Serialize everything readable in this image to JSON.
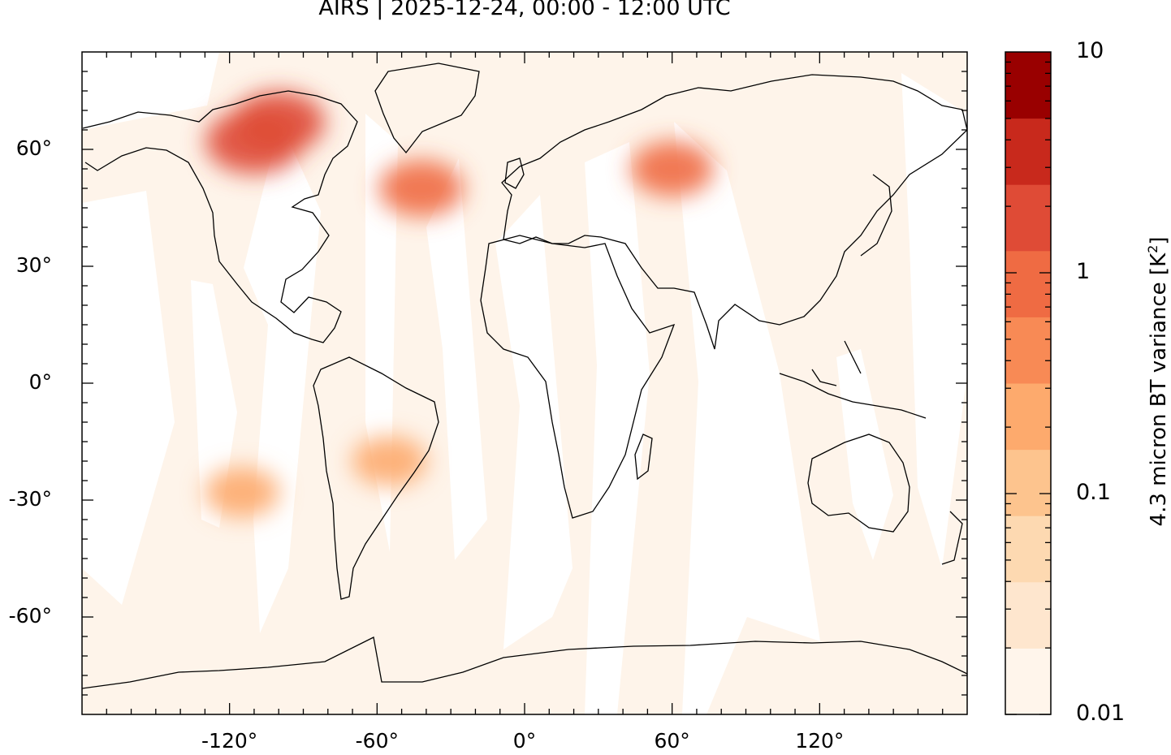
{
  "title": "AIRS | 2025-12-24, 00:00 - 12:00 UTC",
  "map": {
    "projection": "equirectangular",
    "lon_range": [
      -180,
      180
    ],
    "lat_range": [
      -85,
      85
    ],
    "coastlines": true,
    "x_ticks": [
      {
        "value": -120,
        "label": "-120°"
      },
      {
        "value": -60,
        "label": "-60°"
      },
      {
        "value": 0,
        "label": "0°"
      },
      {
        "value": 60,
        "label": "60°"
      },
      {
        "value": 120,
        "label": "120°"
      }
    ],
    "y_ticks": [
      {
        "value": 60,
        "label": "60°"
      },
      {
        "value": 30,
        "label": "30°"
      },
      {
        "value": 0,
        "label": "0°"
      },
      {
        "value": -30,
        "label": "-30°"
      },
      {
        "value": -60,
        "label": "-60°"
      }
    ],
    "hotspots": [
      {
        "region": "Western Canada",
        "lon": -110,
        "lat": 62,
        "level": 2.5
      },
      {
        "region": "Hudson Bay",
        "lon": -100,
        "lat": 67,
        "level": 2.0
      },
      {
        "region": "North Atlantic",
        "lon": -42,
        "lat": 50,
        "level": 1.2
      },
      {
        "region": "Western Siberia",
        "lon": 60,
        "lat": 55,
        "level": 1.0
      },
      {
        "region": "South Atlantic",
        "lon": -55,
        "lat": -20,
        "level": 0.2
      },
      {
        "region": "South Pacific",
        "lon": -115,
        "lat": -28,
        "level": 0.2
      }
    ]
  },
  "colorbar": {
    "label_main": "4.3 micron BT variance [K",
    "label_sup": "2",
    "label_end": "]",
    "scale": "log",
    "range": [
      0.01,
      10
    ],
    "tick_labels": [
      {
        "value": 10,
        "label": "10"
      },
      {
        "value": 1,
        "label": "1"
      },
      {
        "value": 0.1,
        "label": "0.1"
      },
      {
        "value": 0.01,
        "label": "0.01"
      }
    ],
    "colors": [
      "#fff5eb",
      "#fee6ce",
      "#fdd9b1",
      "#fdc48e",
      "#fdaa6d",
      "#f88a55",
      "#ef6b43",
      "#df4b36",
      "#c8291c",
      "#990000"
    ]
  }
}
